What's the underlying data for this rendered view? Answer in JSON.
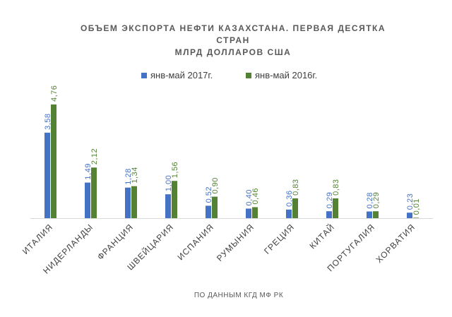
{
  "chart_data": {
    "type": "bar",
    "title_lines": [
      "ОБЪЕМ ЭКСПОРТА НЕФТИ КАЗАХСТАНА. ПЕРВАЯ ДЕСЯТКА",
      "СТРАН",
      "МЛРД ДОЛЛАРОВ США"
    ],
    "categories": [
      "ИТАЛИЯ",
      "НИДЕРЛАНДЫ",
      "ФРАНЦИЯ",
      "ШВЕЙЦАРИЯ",
      "ИСПАНИЯ",
      "РУМЫНИЯ",
      "ГРЕЦИЯ",
      "КИТАЙ",
      "ПОРТУГАЛИЯ",
      "ХОРВАТИЯ"
    ],
    "series": [
      {
        "name": "янв-май 2017г.",
        "color": "#4472C4",
        "values": [
          3.58,
          1.49,
          1.28,
          1.0,
          0.52,
          0.4,
          0.36,
          0.29,
          0.28,
          0.23
        ],
        "labels": [
          "3,58",
          "1,49",
          "1,28",
          "1,00",
          "0,52",
          "0,40",
          "0,36",
          "0,29",
          "0,28",
          "0,23"
        ]
      },
      {
        "name": "янв-май 2016г.",
        "color": "#548235",
        "values": [
          4.76,
          2.12,
          1.34,
          1.56,
          0.9,
          0.46,
          0.83,
          0.83,
          0.29,
          0.01
        ],
        "labels": [
          "4,76",
          "2,12",
          "1,34",
          "1,56",
          "0,90",
          "0,46",
          "0,83",
          "0,83",
          "0,29",
          "0,01"
        ]
      }
    ],
    "ylim": [
      0,
      4.76
    ],
    "legend_position": "top",
    "grid": false,
    "source_note": "ПО ДАННЫМ КГД МФ РК",
    "colors": {
      "axis": "#d9d9d9",
      "text": "#404040"
    }
  }
}
